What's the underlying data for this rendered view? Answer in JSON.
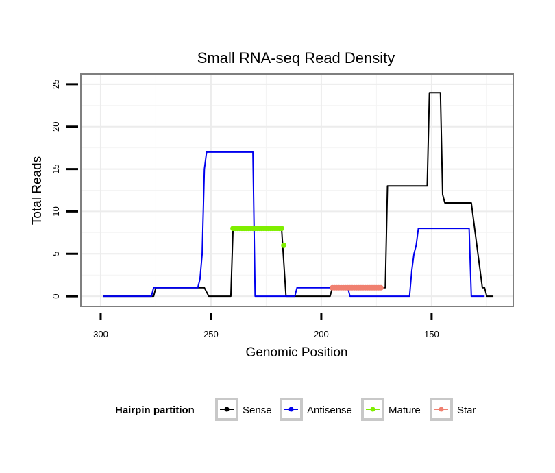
{
  "chart_data": {
    "type": "line",
    "title": "Small RNA-seq Read Density",
    "xlabel": "Genomic Position",
    "ylabel": "Total Reads",
    "xlim": [
      309,
      113
    ],
    "ylim": [
      -1.2,
      26.2
    ],
    "x_reversed": true,
    "grid": true,
    "x_ticks": [
      300,
      250,
      200,
      150
    ],
    "y_ticks": [
      0,
      5,
      10,
      15,
      20,
      25
    ],
    "legend_title": "Hairpin partition",
    "legend_position": "bottom",
    "series": [
      {
        "name": "Sense",
        "color": "#000000",
        "style": "line",
        "points": [
          [
            299,
            0
          ],
          [
            276,
            0
          ],
          [
            275,
            1
          ],
          [
            253,
            1
          ],
          [
            251,
            0
          ],
          [
            241,
            0
          ],
          [
            240,
            8
          ],
          [
            218,
            8
          ],
          [
            216,
            0
          ],
          [
            196,
            0
          ],
          [
            195,
            1
          ],
          [
            171,
            1
          ],
          [
            170,
            13
          ],
          [
            152,
            13
          ],
          [
            151,
            24
          ],
          [
            146,
            24
          ],
          [
            145,
            12
          ],
          [
            144,
            11
          ],
          [
            132,
            11
          ],
          [
            130,
            7
          ],
          [
            128,
            3
          ],
          [
            127,
            1
          ],
          [
            126,
            1
          ],
          [
            125,
            0
          ],
          [
            122,
            0
          ]
        ]
      },
      {
        "name": "Antisense",
        "color": "#0000ee",
        "style": "line",
        "points": [
          [
            299,
            0
          ],
          [
            277,
            0
          ],
          [
            276,
            1
          ],
          [
            256,
            1
          ],
          [
            255,
            2
          ],
          [
            254,
            5
          ],
          [
            253,
            15
          ],
          [
            252,
            17
          ],
          [
            231,
            17
          ],
          [
            230,
            0
          ],
          [
            212,
            0
          ],
          [
            211,
            1
          ],
          [
            188,
            1
          ],
          [
            187,
            0
          ],
          [
            160,
            0
          ],
          [
            159,
            3
          ],
          [
            158,
            5
          ],
          [
            157,
            6
          ],
          [
            156,
            8
          ],
          [
            133,
            8
          ],
          [
            132,
            0
          ],
          [
            126,
            0
          ]
        ]
      },
      {
        "name": "Mature",
        "color": "#7fee00",
        "style": "points",
        "points": [
          [
            240,
            8
          ],
          [
            239,
            8
          ],
          [
            238,
            8
          ],
          [
            237,
            8
          ],
          [
            236,
            8
          ],
          [
            235,
            8
          ],
          [
            234,
            8
          ],
          [
            233,
            8
          ],
          [
            232,
            8
          ],
          [
            231,
            8
          ],
          [
            230,
            8
          ],
          [
            229,
            8
          ],
          [
            228,
            8
          ],
          [
            227,
            8
          ],
          [
            226,
            8
          ],
          [
            225,
            8
          ],
          [
            224,
            8
          ],
          [
            223,
            8
          ],
          [
            222,
            8
          ],
          [
            221,
            8
          ],
          [
            220,
            8
          ],
          [
            219,
            8
          ],
          [
            218,
            8
          ],
          [
            217,
            6
          ]
        ]
      },
      {
        "name": "Star",
        "color": "#f08070",
        "style": "points",
        "points": [
          [
            195,
            1
          ],
          [
            194,
            1
          ],
          [
            193,
            1
          ],
          [
            192,
            1
          ],
          [
            191,
            1
          ],
          [
            190,
            1
          ],
          [
            189,
            1
          ],
          [
            188,
            1
          ],
          [
            187,
            1
          ],
          [
            186,
            1
          ],
          [
            185,
            1
          ],
          [
            184,
            1
          ],
          [
            183,
            1
          ],
          [
            182,
            1
          ],
          [
            181,
            1
          ],
          [
            180,
            1
          ],
          [
            179,
            1
          ],
          [
            178,
            1
          ],
          [
            177,
            1
          ],
          [
            176,
            1
          ],
          [
            175,
            1
          ],
          [
            174,
            1
          ],
          [
            173,
            1
          ]
        ]
      }
    ]
  }
}
